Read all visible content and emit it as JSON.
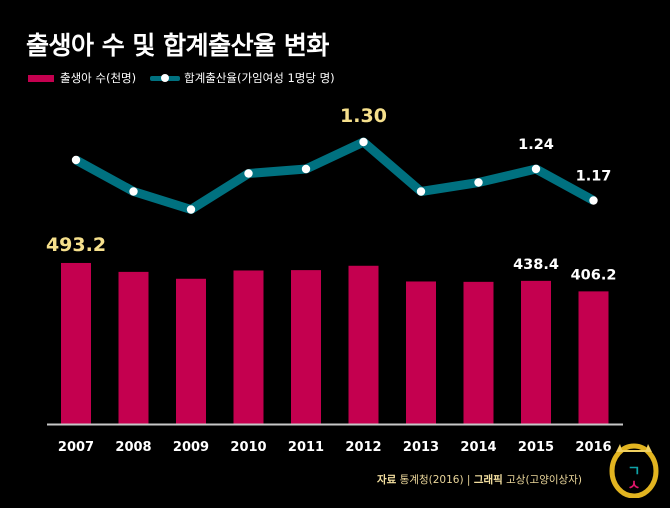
{
  "title": "출생아 수 및 합계출산율 변화",
  "legend": {
    "bar_label": "출생아 수(천명)",
    "line_label": "합계출산율(가임여성 1명당 명)"
  },
  "source": {
    "label_bold": "자료",
    "label_text": "통계청(2016)",
    "separator": "|",
    "graphic_bold": "그래픽",
    "graphic_text": "고상(고양이상자)"
  },
  "badge": {
    "glyph_top": "ㄱ",
    "glyph_bottom": "ㅅ"
  },
  "colors": {
    "bar": "#c4004f",
    "line": "#007180",
    "highlight_label": "#f6e08c",
    "label": "#ffffff"
  },
  "chart_data": {
    "type": "bar+line",
    "title": "출생아 수 및 합계출산율 변화",
    "categories": [
      "2007",
      "2008",
      "2009",
      "2010",
      "2011",
      "2012",
      "2013",
      "2014",
      "2015",
      "2016"
    ],
    "series": [
      {
        "name": "출생아 수(천명)",
        "type": "bar",
        "values": [
          493.2,
          465.9,
          444.8,
          470.2,
          471.3,
          484.6,
          436.5,
          435.4,
          438.4,
          406.2
        ]
      },
      {
        "name": "합계출산율(가임여성 1명당 명)",
        "type": "line",
        "values": [
          1.26,
          1.19,
          1.15,
          1.23,
          1.24,
          1.3,
          1.19,
          1.21,
          1.24,
          1.17
        ]
      }
    ],
    "data_labels": {
      "bar": [
        {
          "index": 0,
          "text": "493.2",
          "highlight": true
        },
        {
          "index": 8,
          "text": "438.4",
          "highlight": false
        },
        {
          "index": 9,
          "text": "406.2",
          "highlight": false
        }
      ],
      "line": [
        {
          "index": 5,
          "text": "1.30",
          "highlight": true
        },
        {
          "index": 8,
          "text": "1.24",
          "highlight": false
        },
        {
          "index": 9,
          "text": "1.17",
          "highlight": false
        }
      ]
    },
    "xlabel": "",
    "ylabel": "",
    "legend_position": "top-left",
    "grid": false
  }
}
